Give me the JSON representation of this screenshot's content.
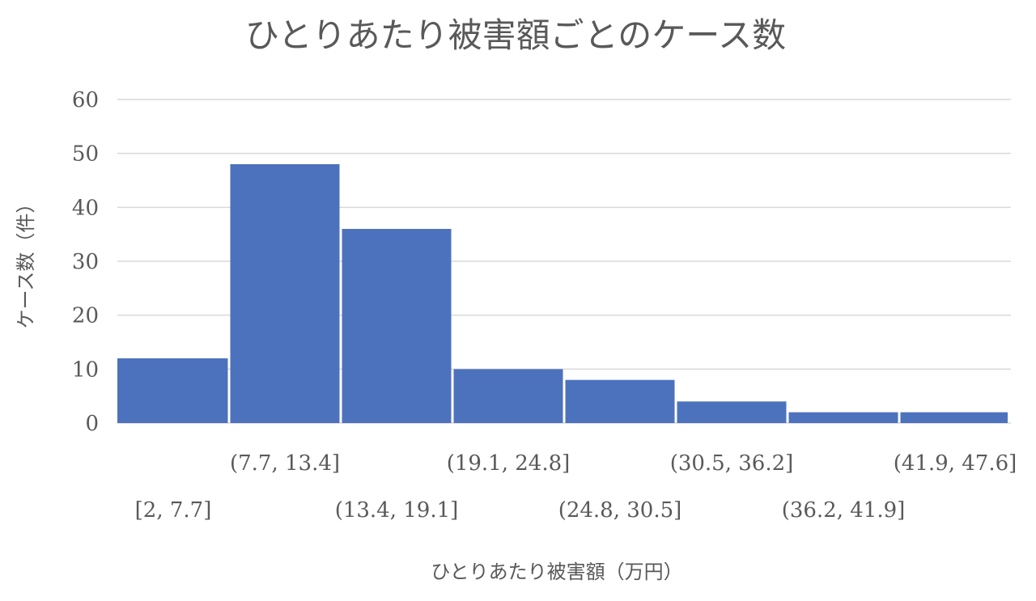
{
  "chart_data": {
    "type": "bar",
    "title": "ひとりあたり被害額ごとのケース数",
    "xlabel": "ひとりあたり被害額（万円）",
    "ylabel": "ケース数（件）",
    "categories": [
      "[2, 7.7]",
      "(7.7, 13.4]",
      "(13.4, 19.1]",
      "(19.1, 24.8]",
      "(24.8, 30.5]",
      "(30.5, 36.2]",
      "(36.2, 41.9]",
      "(41.9, 47.6]"
    ],
    "values": [
      12,
      48,
      36,
      10,
      8,
      4,
      2,
      2
    ],
    "ylim": [
      0,
      60
    ],
    "yticks": [
      "0",
      "10",
      "20",
      "30",
      "40",
      "50",
      "60"
    ],
    "grid": true,
    "legend": "none",
    "bar_color": "#4d72bd",
    "grid_color": "#d9d9d9",
    "text_color": "#595959"
  }
}
